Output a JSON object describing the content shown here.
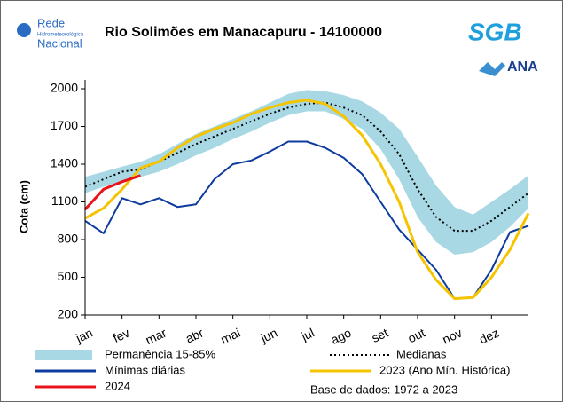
{
  "chart_data": {
    "type": "line",
    "title": "Rio Solimões em Manacapuru - 14100000",
    "logos": {
      "rede": "Rede",
      "hidro": "Hidrometeorológica",
      "nacional": "Nacional",
      "sgb": "SGB",
      "ana": "ANA"
    },
    "y_label": "Cota (cm)",
    "note": "Base de dados: 1972 a 2023",
    "categories": [
      "jan",
      null,
      "fev",
      null,
      "mar",
      null,
      "abr",
      null,
      "mai",
      null,
      "jun",
      null,
      "jul",
      null,
      "ago",
      null,
      "set",
      null,
      "out",
      null,
      "nov",
      null,
      "dez",
      null,
      null
    ],
    "ylim": [
      200,
      2000
    ],
    "yticks": [
      200,
      500,
      800,
      1100,
      1400,
      1700,
      2000
    ],
    "series": [
      {
        "name": "Permanência 15-85%",
        "color": "#a8d8e4",
        "kind": "band",
        "lower": [
          1170,
          1220,
          1260,
          1300,
          1340,
          1400,
          1470,
          1530,
          1600,
          1660,
          1730,
          1790,
          1820,
          1820,
          1760,
          1680,
          1520,
          1280,
          980,
          780,
          680,
          700,
          780,
          900,
          1050
        ],
        "values": [
          1300,
          1340,
          1380,
          1420,
          1480,
          1560,
          1640,
          1700,
          1760,
          1820,
          1890,
          1960,
          1990,
          1980,
          1950,
          1900,
          1810,
          1680,
          1460,
          1230,
          1060,
          1000,
          1100,
          1200,
          1310
        ]
      },
      {
        "name": "Medianas",
        "color": "#000000",
        "kind": "dotted",
        "values": [
          1220,
          1280,
          1340,
          1360,
          1420,
          1490,
          1560,
          1620,
          1680,
          1740,
          1800,
          1850,
          1880,
          1890,
          1850,
          1790,
          1660,
          1480,
          1200,
          980,
          870,
          870,
          950,
          1060,
          1170
        ]
      },
      {
        "name": "Mínimas diárias",
        "color": "#0d3b9e",
        "kind": "line",
        "values": [
          950,
          850,
          1130,
          1080,
          1130,
          1060,
          1080,
          1280,
          1400,
          1430,
          1500,
          1580,
          1580,
          1530,
          1450,
          1320,
          1100,
          880,
          720,
          560,
          330,
          340,
          560,
          860,
          910
        ]
      },
      {
        "name": "2023 (Ano Mín. Histórica)",
        "color": "#f5c400",
        "kind": "line",
        "values": [
          970,
          1050,
          1200,
          1370,
          1420,
          1530,
          1620,
          1680,
          1730,
          1800,
          1850,
          1890,
          1910,
          1880,
          1780,
          1630,
          1400,
          1100,
          700,
          480,
          330,
          340,
          500,
          720,
          1010
        ]
      },
      {
        "name": "2024",
        "color": "#e8141c",
        "kind": "line",
        "values": [
          1040,
          1200,
          1260,
          1310,
          null,
          null,
          null,
          null,
          null,
          null,
          null,
          null,
          null,
          null,
          null,
          null,
          null,
          null,
          null,
          null,
          null,
          null,
          null,
          null,
          null
        ]
      }
    ]
  }
}
